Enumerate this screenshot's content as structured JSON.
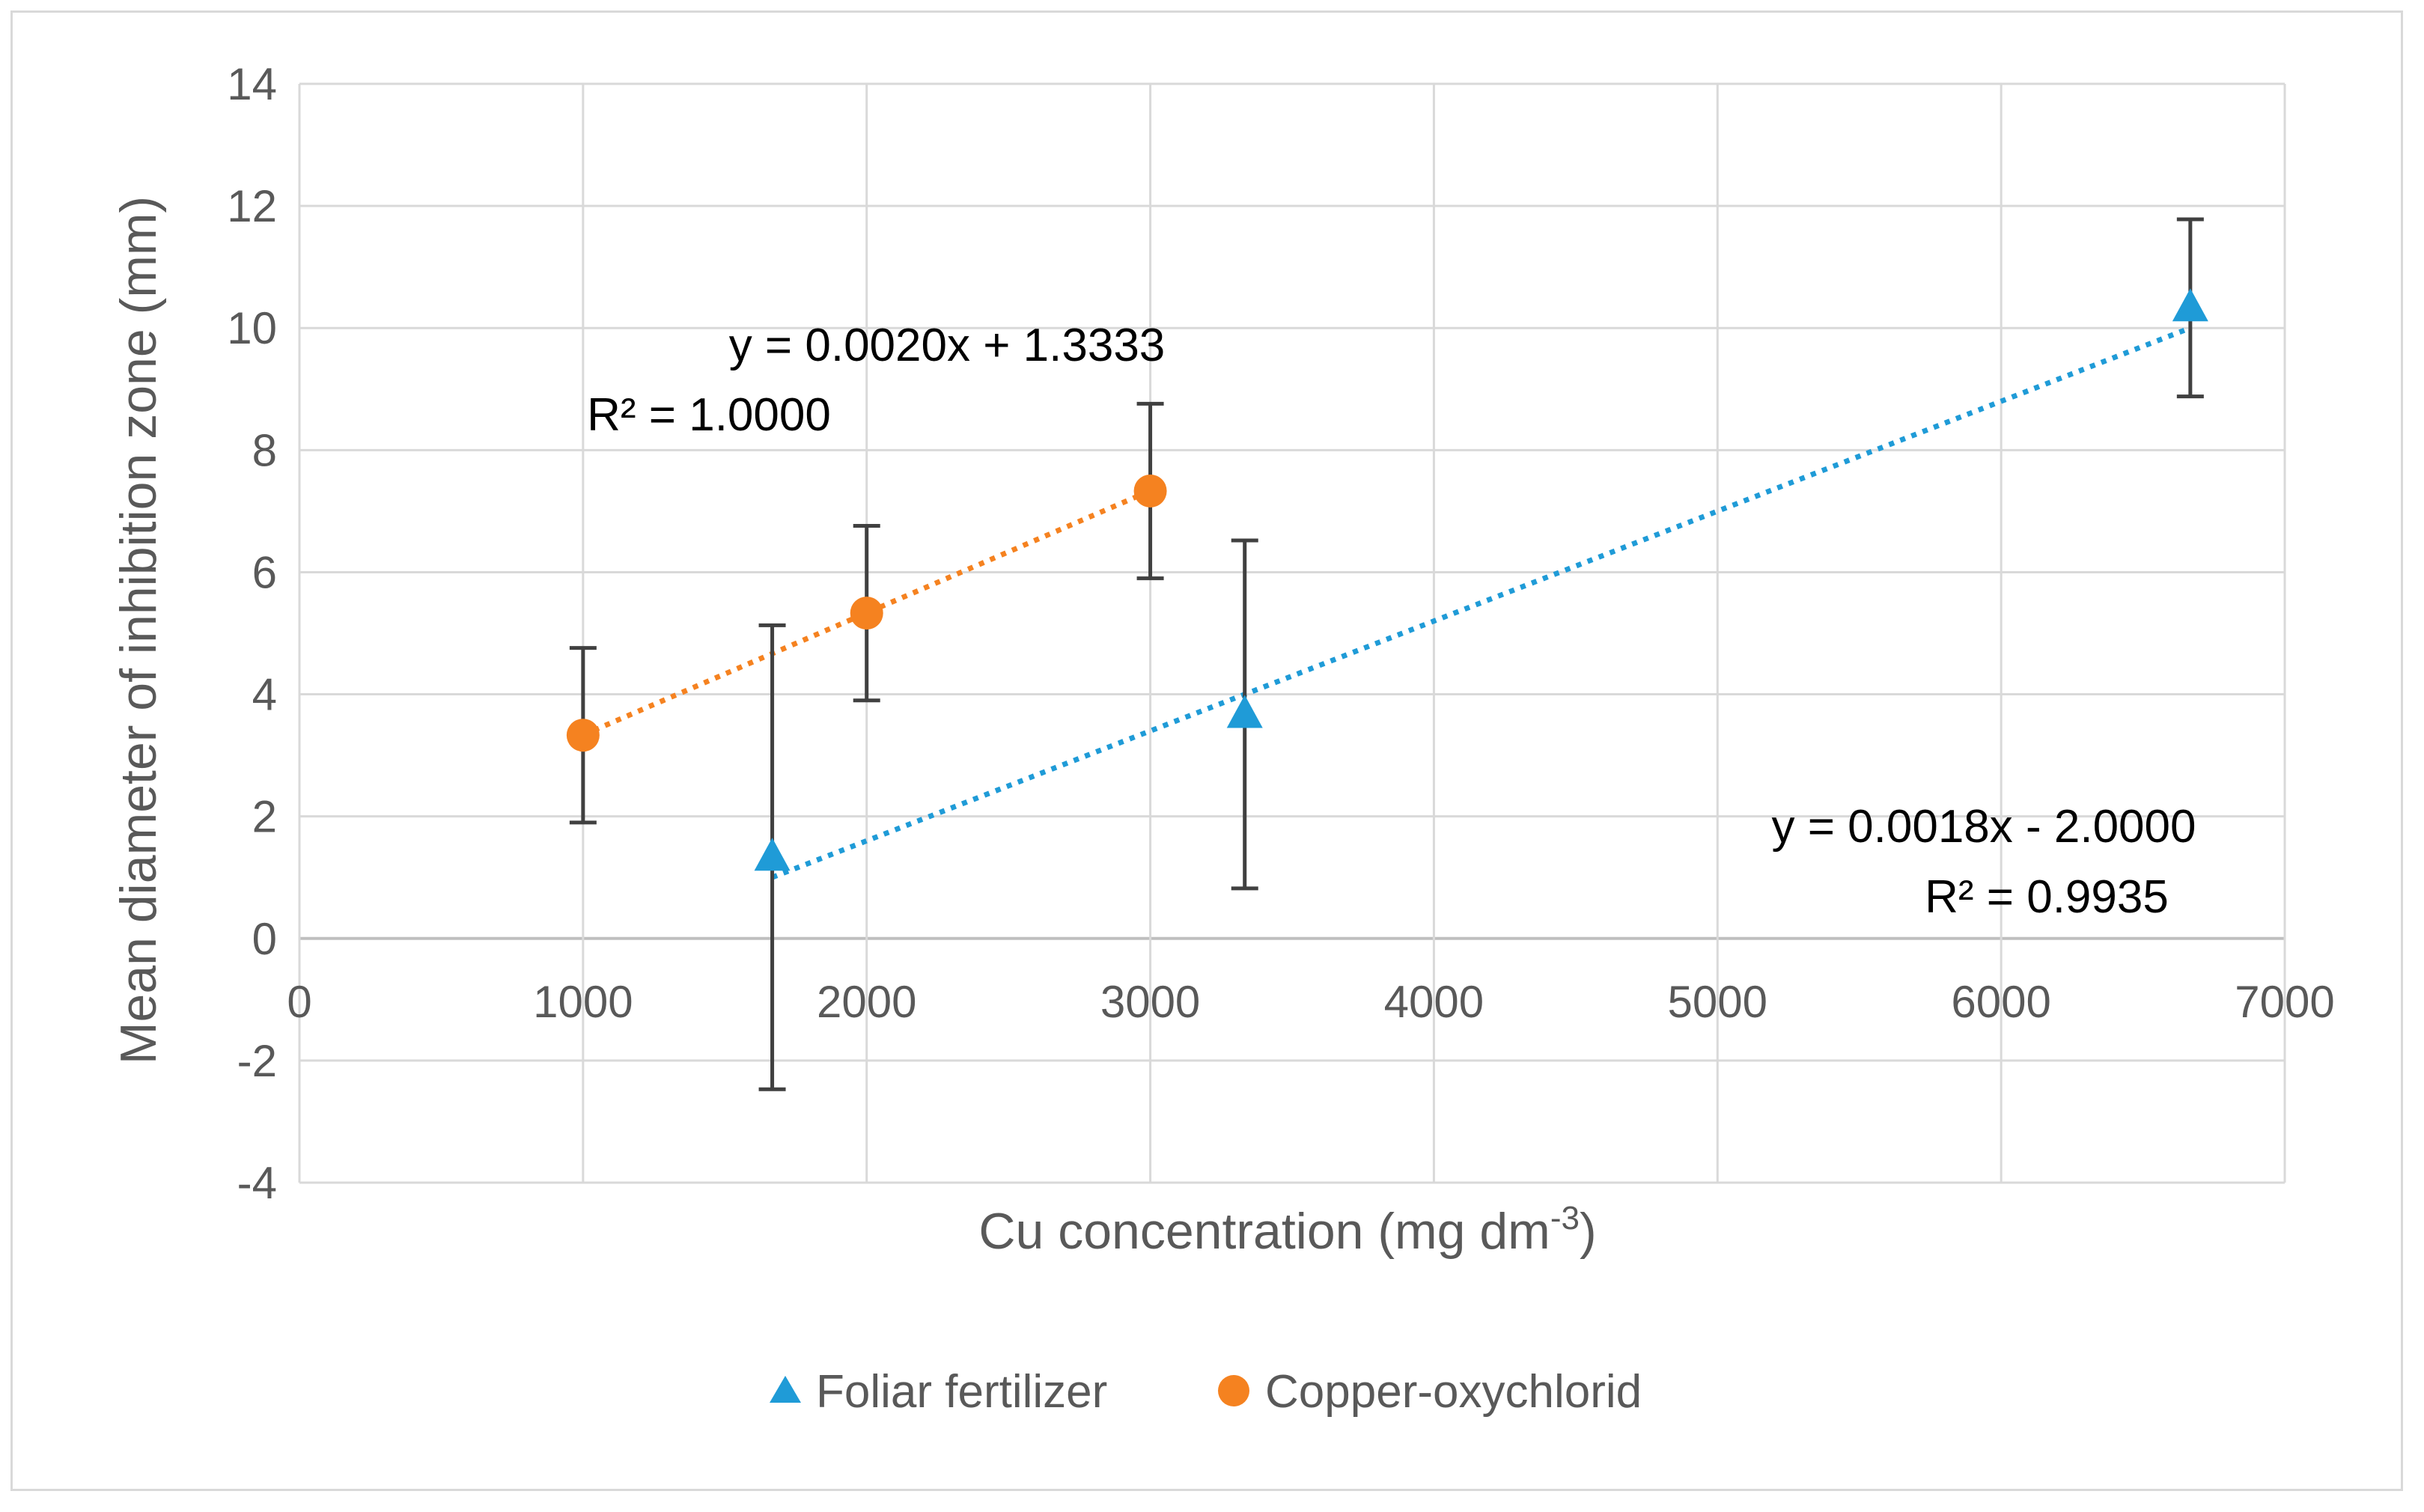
{
  "chart_data": {
    "type": "scatter",
    "title": "",
    "xlabel": "Cu concentration (mg dm",
    "xlabel_superscript": "-3",
    "xlabel_suffix": ")",
    "ylabel": "Mean diameter of inhibition zone (mm)",
    "xlim": [
      0,
      7000
    ],
    "ylim": [
      -4,
      14
    ],
    "x_ticks": [
      0,
      1000,
      2000,
      3000,
      4000,
      5000,
      6000,
      7000
    ],
    "y_ticks": [
      -4,
      -2,
      0,
      2,
      4,
      6,
      8,
      10,
      12,
      14
    ],
    "grid": true,
    "legend_position": "bottom",
    "series": [
      {
        "name": "Foliar fertilizer",
        "marker": "triangle",
        "color": "#1f9bd7",
        "x": [
          1667,
          3333,
          6667
        ],
        "y": [
          1.33,
          3.67,
          10.33
        ],
        "error": [
          3.8,
          2.85,
          1.45
        ],
        "trendline": {
          "slope": 0.0018,
          "intercept": -2.0,
          "x_range": [
            1667,
            6667
          ]
        },
        "equation": "y = 0.0018x - 2.0000",
        "r2": "R² = 0.9935"
      },
      {
        "name": "Copper-oxychlorid",
        "marker": "circle",
        "color": "#f58220",
        "x": [
          1000,
          2000,
          3000
        ],
        "y": [
          3.33,
          5.33,
          7.33
        ],
        "error": [
          1.43,
          1.43,
          1.43
        ],
        "trendline": {
          "slope": 0.002,
          "intercept": 1.3333,
          "x_range": [
            1000,
            3000
          ]
        },
        "equation": "y = 0.0020x + 1.3333",
        "r2": "R² = 1.0000"
      }
    ]
  }
}
